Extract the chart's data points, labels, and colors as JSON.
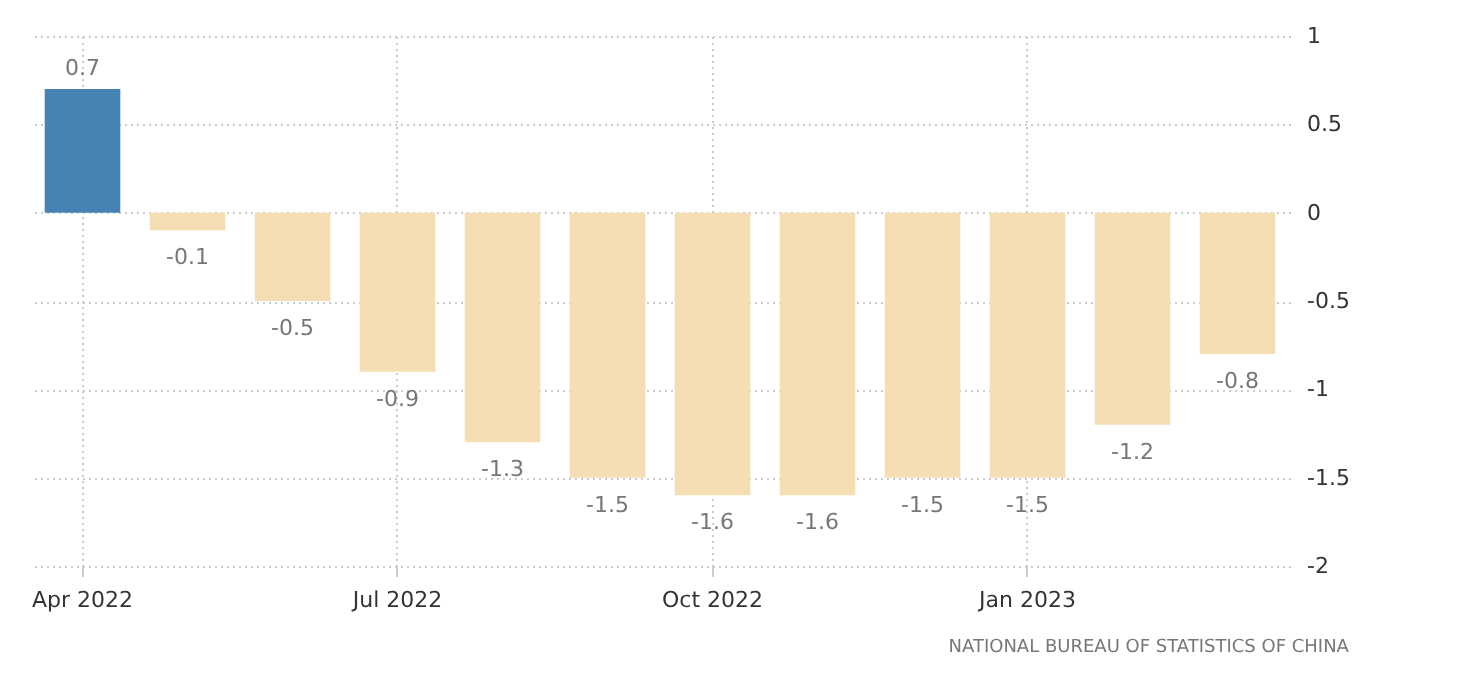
{
  "chart_data": {
    "type": "bar",
    "categories": [
      "Apr 2022",
      null,
      null,
      "Jul 2022",
      null,
      null,
      "Oct 2022",
      null,
      null,
      "Jan 2023",
      null,
      null
    ],
    "values": [
      0.7,
      -0.1,
      -0.5,
      -0.9,
      -1.3,
      -1.5,
      -1.6,
      -1.6,
      -1.5,
      -1.5,
      -1.2,
      -0.8
    ],
    "colors": [
      "#4682b4",
      "#f5deb3",
      "#f5deb3",
      "#f5deb3",
      "#f5deb3",
      "#f5deb3",
      "#f5deb3",
      "#f5deb3",
      "#f5deb3",
      "#f5deb3",
      "#f5deb3",
      "#f5deb3"
    ],
    "ylim": [
      -2,
      1
    ],
    "yticks": [
      -2,
      -1.5,
      -1,
      -0.5,
      0,
      0.5,
      1
    ],
    "grid": true,
    "data_labels": true,
    "annotations": [
      "NATIONAL BUREAU OF STATISTICS OF CHINA"
    ]
  }
}
